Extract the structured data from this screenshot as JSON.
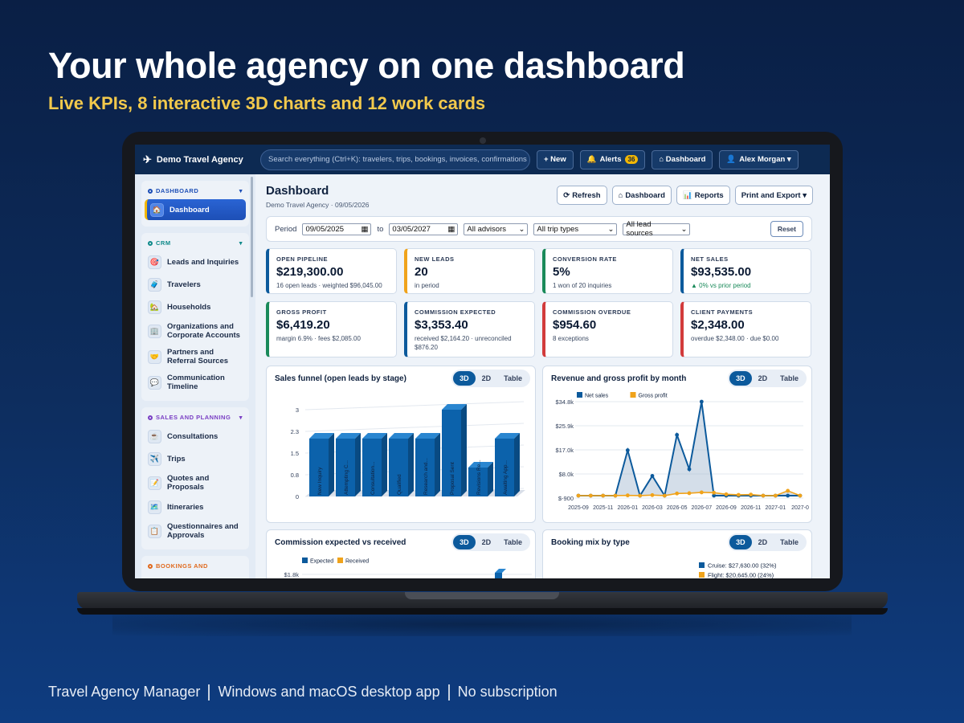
{
  "hero": {
    "title": "Your whole agency on one dashboard",
    "subtitle": "Live KPIs, 8 interactive 3D charts and 12 work cards"
  },
  "footer": {
    "items": [
      "Travel Agency Manager",
      "Windows and macOS desktop app",
      "No subscription"
    ]
  },
  "header": {
    "brand": "Demo Travel Agency",
    "search_placeholder": "Search everything (Ctrl+K): travelers, trips, bookings, invoices, confirmations",
    "new_label": "+ New",
    "alerts_label": "Alerts",
    "alerts_count": "36",
    "dashboard_label": "⌂ Dashboard",
    "user_label": "Alex Morgan ▾"
  },
  "sidebar": {
    "sections": [
      {
        "title": "DASHBOARD",
        "color": "#1d4fb6",
        "items": [
          {
            "label": "Dashboard",
            "icon": "home-icon",
            "glyph": "🏠",
            "active": true
          }
        ]
      },
      {
        "title": "CRM",
        "color": "#0f8a8a",
        "items": [
          {
            "label": "Leads and Inquiries",
            "icon": "target-icon",
            "glyph": "🎯"
          },
          {
            "label": "Travelers",
            "icon": "luggage-icon",
            "glyph": "🧳"
          },
          {
            "label": "Households",
            "icon": "house-icon",
            "glyph": "🏡"
          },
          {
            "label": "Organizations and Corporate Accounts",
            "icon": "building-icon",
            "glyph": "🏢"
          },
          {
            "label": "Partners and Referral Sources",
            "icon": "handshake-icon",
            "glyph": "🤝"
          },
          {
            "label": "Communication Timeline",
            "icon": "chat-icon",
            "glyph": "💬"
          }
        ]
      },
      {
        "title": "SALES AND PLANNING",
        "color": "#7a3fc4",
        "items": [
          {
            "label": "Consultations",
            "icon": "coffee-icon",
            "glyph": "☕"
          },
          {
            "label": "Trips",
            "icon": "airplane-icon",
            "glyph": "✈️"
          },
          {
            "label": "Quotes and Proposals",
            "icon": "memo-icon",
            "glyph": "📝"
          },
          {
            "label": "Itineraries",
            "icon": "map-icon",
            "glyph": "🗺️"
          },
          {
            "label": "Questionnaires and Approvals",
            "icon": "clipboard-icon",
            "glyph": "📋"
          }
        ]
      },
      {
        "title": "BOOKINGS AND",
        "color": "#e06a1e",
        "items": []
      }
    ]
  },
  "page": {
    "title": "Dashboard",
    "subtitle": "Demo Travel Agency · 09/05/2026",
    "actions": [
      {
        "label": "Refresh",
        "glyph": "⟳"
      },
      {
        "label": "Dashboard",
        "glyph": "⌂"
      },
      {
        "label": "Reports",
        "glyph": "📊"
      },
      {
        "label": "Print and Export ▾",
        "glyph": ""
      }
    ]
  },
  "filters": {
    "period_label": "Period",
    "from": "09/05/2025",
    "to_label": "to",
    "to": "03/05/2027",
    "advisors": "All advisors",
    "trip_types": "All trip types",
    "lead_sources": "All lead sources",
    "reset_label": "Reset"
  },
  "kpis": [
    {
      "label": "OPEN PIPELINE",
      "value": "$219,300.00",
      "note": "16 open leads · weighted $96,045.00",
      "color": "#0c5a9c"
    },
    {
      "label": "NEW LEADS",
      "value": "20",
      "note": "in period",
      "color": "#f0a31b"
    },
    {
      "label": "CONVERSION RATE",
      "value": "5%",
      "note": "1 won of 20 inquiries",
      "color": "#1a8a5a"
    },
    {
      "label": "NET SALES",
      "value": "$93,535.00",
      "note": "▲ 0% vs prior period",
      "color": "#0c5a9c",
      "up": true
    },
    {
      "label": "GROSS PROFIT",
      "value": "$6,419.20",
      "note": "margin 6.9% · fees $2,085.00",
      "color": "#1a8a5a"
    },
    {
      "label": "COMMISSION EXPECTED",
      "value": "$3,353.40",
      "note": "received $2,164.20 · unreconciled $876.20",
      "color": "#0c5a9c"
    },
    {
      "label": "COMMISSION OVERDUE",
      "value": "$954.60",
      "note": "8 exceptions",
      "color": "#d23b3b"
    },
    {
      "label": "CLIENT PAYMENTS",
      "value": "$2,348.00",
      "note": "overdue $2,348.00 · due $0.00",
      "color": "#d23b3b"
    }
  ],
  "toggle": [
    "3D",
    "2D",
    "Table"
  ],
  "chart_data": [
    {
      "type": "bar",
      "title": "Sales funnel (open leads by stage)",
      "categories": [
        "New Inquiry",
        "Attempting C...",
        "Consultation...",
        "Qualified",
        "Research and...",
        "Proposal Sent",
        "Revisions Re...",
        "Awaiting App..."
      ],
      "values": [
        2,
        2,
        2,
        2,
        2,
        3,
        1,
        2
      ],
      "yticks": [
        "0",
        "0.8",
        "1.5",
        "2.3",
        "3"
      ],
      "ylim": [
        0,
        3
      ],
      "color": "#0c62ab"
    },
    {
      "type": "line",
      "title": "Revenue and gross profit by month",
      "x": [
        "2025-09",
        "2025-10",
        "2025-11",
        "2025-12",
        "2026-01",
        "2026-02",
        "2026-03",
        "2026-04",
        "2026-05",
        "2026-06",
        "2026-07",
        "2026-08",
        "2026-09",
        "2026-10",
        "2026-11",
        "2026-12",
        "2027-01",
        "2027-02",
        "2027-03"
      ],
      "xticks": [
        "2025-09",
        "2025-11",
        "2026-01",
        "2026-03",
        "2026-05",
        "2026-07",
        "2026-09",
        "2026-11",
        "2027-01",
        "2027-0"
      ],
      "yticks": [
        "$-900",
        "$8.0k",
        "$17.0k",
        "$25.9k",
        "$34.8k"
      ],
      "ylim": [
        -900,
        34800
      ],
      "series": [
        {
          "name": "Net sales",
          "color": "#0c5a9c",
          "values": [
            0,
            0,
            0,
            0,
            16800,
            0,
            7300,
            0,
            22500,
            9800,
            34800,
            0,
            0,
            0,
            0,
            0,
            0,
            0,
            0
          ]
        },
        {
          "name": "Gross profit",
          "color": "#f0a31b",
          "values": [
            0,
            0,
            0,
            0,
            100,
            0,
            200,
            0,
            800,
            900,
            1200,
            1100,
            500,
            300,
            400,
            0,
            0,
            1800,
            0
          ]
        }
      ]
    },
    {
      "type": "bar",
      "title": "Commission expected vs received",
      "series": [
        {
          "name": "Expected",
          "color": "#0c5a9c"
        },
        {
          "name": "Received",
          "color": "#f0a31b"
        }
      ],
      "yticks": [
        "$1.8k"
      ]
    },
    {
      "type": "pie",
      "title": "Booking mix by type",
      "legend": [
        {
          "label": "Cruise: $27,630.00 (32%)",
          "color": "#0c5a9c"
        },
        {
          "label": "Flight: $20,645.00 (24%)",
          "color": "#f0a31b"
        }
      ]
    }
  ]
}
